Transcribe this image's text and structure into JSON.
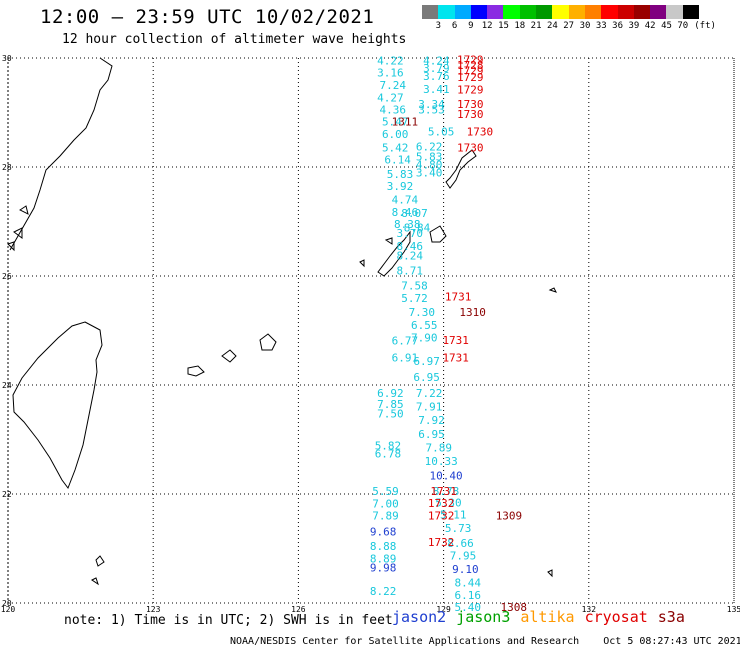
{
  "header": {
    "title": "12:00 – 23:59 UTC 10/02/2021",
    "subtitle": "12 hour collection of altimeter wave heights"
  },
  "colorscale": {
    "unit": "(ft)",
    "colors": [
      "#7a7a7a",
      "#00e5ee",
      "#00aaff",
      "#0000ff",
      "#8a2be2",
      "#00ff00",
      "#00c000",
      "#009900",
      "#ffff00",
      "#ffb000",
      "#ff7f00",
      "#ff0000",
      "#cc0000",
      "#990000",
      "#800080",
      "#c8c8c8",
      "#000000"
    ],
    "ticks": [
      "3",
      "6",
      "9",
      "12",
      "15",
      "18",
      "21",
      "24",
      "27",
      "30",
      "33",
      "36",
      "39",
      "42",
      "45",
      "70"
    ]
  },
  "map": {
    "lon_range": [
      120,
      135
    ],
    "lat_range": [
      20,
      30
    ],
    "lon_ticks": [
      "120",
      "123",
      "126",
      "129",
      "132",
      "135"
    ],
    "lat_ticks": [
      "30",
      "28",
      "26",
      "24",
      "22",
      "20"
    ]
  },
  "track_colors": {
    "cyan": "#19c8dc",
    "blue": "#1f3fd0",
    "red": "#e00000",
    "darkred": "#8a0000"
  },
  "observations": [
    {
      "lon": 127.9,
      "lat": 29.88,
      "label": "4.22",
      "c": "cyan"
    },
    {
      "lon": 127.9,
      "lat": 29.66,
      "label": "3.16",
      "c": "cyan"
    },
    {
      "lon": 127.95,
      "lat": 29.43,
      "label": "7.24",
      "c": "cyan"
    },
    {
      "lon": 127.9,
      "lat": 29.2,
      "label": "4.27",
      "c": "cyan"
    },
    {
      "lon": 127.95,
      "lat": 28.98,
      "label": "4.36",
      "c": "cyan"
    },
    {
      "lon": 128.0,
      "lat": 28.76,
      "label": "5.47",
      "c": "cyan"
    },
    {
      "lon": 128.0,
      "lat": 28.53,
      "label": "6.00",
      "c": "cyan"
    },
    {
      "lon": 128.0,
      "lat": 28.28,
      "label": "5.42",
      "c": "cyan"
    },
    {
      "lon": 128.05,
      "lat": 28.06,
      "label": "6.14",
      "c": "cyan"
    },
    {
      "lon": 128.1,
      "lat": 27.8,
      "label": "5.83",
      "c": "cyan"
    },
    {
      "lon": 128.1,
      "lat": 27.58,
      "label": "3.92",
      "c": "cyan"
    },
    {
      "lon": 128.2,
      "lat": 27.33,
      "label": "4.74",
      "c": "cyan"
    },
    {
      "lon": 128.2,
      "lat": 27.1,
      "label": "8.46",
      "c": "cyan"
    },
    {
      "lon": 128.4,
      "lat": 27.08,
      "label": "8.07",
      "c": "cyan"
    },
    {
      "lon": 128.25,
      "lat": 26.88,
      "label": "8.38",
      "c": "cyan"
    },
    {
      "lon": 128.45,
      "lat": 26.82,
      "label": "8.84",
      "c": "cyan"
    },
    {
      "lon": 128.3,
      "lat": 26.72,
      "label": "3.70",
      "c": "cyan"
    },
    {
      "lon": 128.3,
      "lat": 26.48,
      "label": "8.46",
      "c": "cyan"
    },
    {
      "lon": 128.3,
      "lat": 26.3,
      "label": "8.24",
      "c": "cyan"
    },
    {
      "lon": 128.3,
      "lat": 26.03,
      "label": "8.71",
      "c": "cyan"
    },
    {
      "lon": 128.4,
      "lat": 25.75,
      "label": "7.58",
      "c": "cyan"
    },
    {
      "lon": 128.4,
      "lat": 25.52,
      "label": "5.72",
      "c": "cyan"
    },
    {
      "lon": 128.55,
      "lat": 25.27,
      "label": "7.30",
      "c": "cyan"
    },
    {
      "lon": 128.6,
      "lat": 25.03,
      "label": "6.55",
      "c": "cyan"
    },
    {
      "lon": 128.6,
      "lat": 24.8,
      "label": "7.90",
      "c": "cyan"
    },
    {
      "lon": 128.2,
      "lat": 24.74,
      "label": "6.77",
      "c": "cyan"
    },
    {
      "lon": 128.2,
      "lat": 24.43,
      "label": "6.91",
      "c": "cyan"
    },
    {
      "lon": 128.65,
      "lat": 24.37,
      "label": "6.97",
      "c": "cyan"
    },
    {
      "lon": 128.65,
      "lat": 24.07,
      "label": "6.95",
      "c": "cyan"
    },
    {
      "lon": 127.9,
      "lat": 23.78,
      "label": "6.92",
      "c": "cyan"
    },
    {
      "lon": 127.9,
      "lat": 23.58,
      "label": "7.85",
      "c": "cyan"
    },
    {
      "lon": 127.9,
      "lat": 23.4,
      "label": "7.50",
      "c": "cyan"
    },
    {
      "lon": 128.7,
      "lat": 23.78,
      "label": "7.22",
      "c": "cyan"
    },
    {
      "lon": 128.7,
      "lat": 23.53,
      "label": "7.91",
      "c": "cyan"
    },
    {
      "lon": 128.75,
      "lat": 23.28,
      "label": "7.92",
      "c": "cyan"
    },
    {
      "lon": 128.75,
      "lat": 23.03,
      "label": "6.95",
      "c": "cyan"
    },
    {
      "lon": 127.85,
      "lat": 22.82,
      "label": "5.82",
      "c": "cyan"
    },
    {
      "lon": 127.85,
      "lat": 22.67,
      "label": "6.78",
      "c": "cyan"
    },
    {
      "lon": 128.9,
      "lat": 22.78,
      "label": "7.89",
      "c": "cyan"
    },
    {
      "lon": 128.95,
      "lat": 22.53,
      "label": "10.33",
      "c": "cyan"
    },
    {
      "lon": 129.05,
      "lat": 22.27,
      "label": "10.40",
      "c": "blue"
    },
    {
      "lon": 127.8,
      "lat": 21.98,
      "label": "5.59",
      "c": "cyan"
    },
    {
      "lon": 129.05,
      "lat": 21.98,
      "label": "8.78",
      "c": "cyan"
    },
    {
      "lon": 127.8,
      "lat": 21.75,
      "label": "7.00",
      "c": "cyan"
    },
    {
      "lon": 129.1,
      "lat": 21.77,
      "label": "5.30",
      "c": "cyan"
    },
    {
      "lon": 127.8,
      "lat": 21.53,
      "label": "7.89",
      "c": "cyan"
    },
    {
      "lon": 129.2,
      "lat": 21.55,
      "label": "5.11",
      "c": "cyan"
    },
    {
      "lon": 129.3,
      "lat": 21.3,
      "label": "5.73",
      "c": "cyan"
    },
    {
      "lon": 127.75,
      "lat": 21.24,
      "label": "9.68",
      "c": "blue"
    },
    {
      "lon": 129.35,
      "lat": 21.03,
      "label": "8.66",
      "c": "cyan"
    },
    {
      "lon": 127.75,
      "lat": 20.97,
      "label": "8.88",
      "c": "cyan"
    },
    {
      "lon": 129.4,
      "lat": 20.8,
      "label": "7.95",
      "c": "cyan"
    },
    {
      "lon": 127.75,
      "lat": 20.74,
      "label": "8.89",
      "c": "cyan"
    },
    {
      "lon": 127.75,
      "lat": 20.58,
      "label": "9.98",
      "c": "blue"
    },
    {
      "lon": 129.45,
      "lat": 20.55,
      "label": "9.10",
      "c": "blue"
    },
    {
      "lon": 129.5,
      "lat": 20.3,
      "label": "8.44",
      "c": "cyan"
    },
    {
      "lon": 129.5,
      "lat": 20.07,
      "label": "6.16",
      "c": "cyan"
    },
    {
      "lon": 127.75,
      "lat": 20.15,
      "label": "8.22",
      "c": "cyan"
    },
    {
      "lon": 129.5,
      "lat": 19.85,
      "label": "5.40",
      "c": "cyan"
    },
    {
      "lon": 128.85,
      "lat": 29.88,
      "label": "4.24",
      "c": "cyan"
    },
    {
      "lon": 128.85,
      "lat": 29.74,
      "label": "3.79",
      "c": "cyan"
    },
    {
      "lon": 128.85,
      "lat": 29.6,
      "label": "3.76",
      "c": "cyan"
    },
    {
      "lon": 128.85,
      "lat": 29.36,
      "label": "3.41",
      "c": "cyan"
    },
    {
      "lon": 128.75,
      "lat": 29.08,
      "label": "3.34",
      "c": "cyan"
    },
    {
      "lon": 128.75,
      "lat": 28.98,
      "label": "3.53",
      "c": "cyan"
    },
    {
      "lon": 128.95,
      "lat": 28.58,
      "label": "5.05",
      "c": "cyan"
    },
    {
      "lon": 128.7,
      "lat": 28.3,
      "label": "6.22",
      "c": "cyan"
    },
    {
      "lon": 128.7,
      "lat": 28.12,
      "label": "5.83",
      "c": "cyan"
    },
    {
      "lon": 128.7,
      "lat": 27.97,
      "label": "4.80",
      "c": "cyan"
    },
    {
      "lon": 128.7,
      "lat": 27.83,
      "label": "3.40",
      "c": "cyan"
    },
    {
      "lon": 129.55,
      "lat": 29.9,
      "label": "1729",
      "c": "red"
    },
    {
      "lon": 129.55,
      "lat": 29.8,
      "label": "1728",
      "c": "red"
    },
    {
      "lon": 129.55,
      "lat": 29.7,
      "label": "1729",
      "c": "red"
    },
    {
      "lon": 129.55,
      "lat": 29.58,
      "label": "1729",
      "c": "red"
    },
    {
      "lon": 129.55,
      "lat": 29.35,
      "label": "1729",
      "c": "red"
    },
    {
      "lon": 129.55,
      "lat": 29.08,
      "label": "1730",
      "c": "red"
    },
    {
      "lon": 129.55,
      "lat": 28.9,
      "label": "1730",
      "c": "red"
    },
    {
      "lon": 128.2,
      "lat": 28.76,
      "label": "1311",
      "c": "darkred"
    },
    {
      "lon": 129.75,
      "lat": 28.58,
      "label": "1730",
      "c": "red"
    },
    {
      "lon": 129.55,
      "lat": 28.28,
      "label": "1730",
      "c": "red"
    },
    {
      "lon": 129.3,
      "lat": 25.55,
      "label": "1731",
      "c": "red"
    },
    {
      "lon": 129.6,
      "lat": 25.27,
      "label": "1310",
      "c": "darkred"
    },
    {
      "lon": 129.25,
      "lat": 24.75,
      "label": "1731",
      "c": "red"
    },
    {
      "lon": 129.25,
      "lat": 24.43,
      "label": "1731",
      "c": "red"
    },
    {
      "lon": 129.0,
      "lat": 21.98,
      "label": "1731",
      "c": "red"
    },
    {
      "lon": 128.95,
      "lat": 21.76,
      "label": "1732",
      "c": "red"
    },
    {
      "lon": 128.95,
      "lat": 21.53,
      "label": "1732",
      "c": "red"
    },
    {
      "lon": 130.35,
      "lat": 21.53,
      "label": "1309",
      "c": "darkred"
    },
    {
      "lon": 128.95,
      "lat": 21.05,
      "label": "1732",
      "c": "red"
    },
    {
      "lon": 130.45,
      "lat": 19.85,
      "label": "1308",
      "c": "darkred"
    }
  ],
  "footer": {
    "note": "note: 1) Time is in UTC; 2) SWH is in feet",
    "legend": [
      {
        "label": "jason2",
        "color": "#1f3fd0"
      },
      {
        "label": "jason3",
        "color": "#00a000"
      },
      {
        "label": "altika",
        "color": "#ff9900"
      },
      {
        "label": "cryosat",
        "color": "#e00000"
      },
      {
        "label": "s3a",
        "color": "#8a0000"
      }
    ],
    "credit_left": "NOAA/NESDIS Center for Satellite Applications and Research",
    "credit_right": "Oct  5 08:27:43 UTC 2021"
  }
}
